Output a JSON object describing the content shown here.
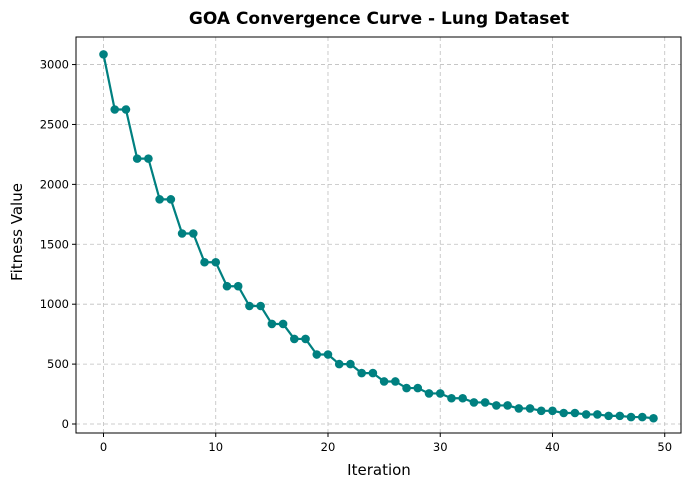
{
  "chart_data": {
    "type": "line",
    "title": "GOA Convergence Curve - Lung Dataset",
    "xlabel": "Iteration",
    "ylabel": "Fitness Value",
    "xlim": [
      -2.45,
      51.45
    ],
    "ylim": [
      -75,
      3230
    ],
    "xticks": [
      0,
      10,
      20,
      30,
      40,
      50
    ],
    "yticks": [
      0,
      500,
      1000,
      1500,
      2000,
      2500,
      3000
    ],
    "grid": true,
    "series": [
      {
        "color": "#008080",
        "x": [
          0,
          1,
          2,
          3,
          4,
          5,
          6,
          7,
          8,
          9,
          10,
          11,
          12,
          13,
          14,
          15,
          16,
          17,
          18,
          19,
          20,
          21,
          22,
          23,
          24,
          25,
          26,
          27,
          28,
          29,
          30,
          31,
          32,
          33,
          34,
          35,
          36,
          37,
          38,
          39,
          40,
          41,
          42,
          43,
          44,
          45,
          46,
          47,
          48,
          49
        ],
        "values": [
          3085,
          2625,
          2625,
          2215,
          2215,
          1875,
          1875,
          1590,
          1590,
          1350,
          1350,
          1150,
          1150,
          985,
          985,
          835,
          835,
          710,
          710,
          580,
          580,
          500,
          500,
          425,
          425,
          355,
          355,
          300,
          300,
          255,
          255,
          215,
          215,
          180,
          180,
          155,
          155,
          130,
          130,
          110,
          110,
          92,
          92,
          80,
          80,
          68,
          68,
          58,
          58,
          48
        ]
      }
    ]
  }
}
